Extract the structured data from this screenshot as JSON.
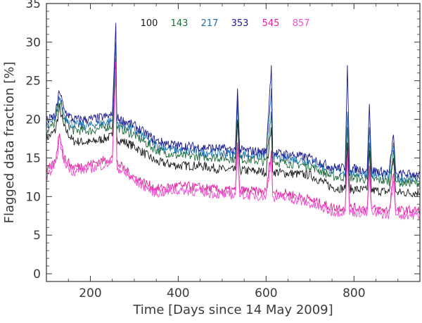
{
  "chart_data": {
    "type": "line",
    "title": "",
    "xlabel": "Time [Days since 14 May 2009]",
    "ylabel": "Flagged data fraction [%]",
    "xlim": [
      100,
      950
    ],
    "ylim": [
      -1,
      35
    ],
    "xticks": [
      200,
      400,
      600,
      800
    ],
    "yticks": [
      0,
      5,
      10,
      15,
      20,
      25,
      30,
      35
    ],
    "grid": false,
    "legend_placement": "top-center",
    "series": [
      {
        "name": "100",
        "color": "#1a1a1a",
        "x": [
          100,
          120,
          130,
          140,
          160,
          200,
          250,
          258,
          260,
          300,
          350,
          400,
          450,
          500,
          530,
          535,
          540,
          600,
          612,
          615,
          618,
          650,
          700,
          750,
          780,
          785,
          790,
          830,
          835,
          840,
          880,
          890,
          895,
          900,
          950
        ],
        "y": [
          17.5,
          18.5,
          21.5,
          19,
          17.2,
          17,
          17.8,
          26,
          17.5,
          16.5,
          14.5,
          14,
          14,
          13.5,
          13.4,
          20,
          13.4,
          13.2,
          19,
          13.2,
          13.2,
          13,
          12.8,
          11.2,
          11,
          17,
          11,
          10.8,
          16,
          10.8,
          10.6,
          15,
          10.6,
          10.5,
          10.5
        ]
      },
      {
        "name": "143",
        "color": "#1f6b3a",
        "x": [
          100,
          120,
          130,
          140,
          160,
          200,
          250,
          258,
          260,
          300,
          350,
          400,
          450,
          500,
          530,
          535,
          540,
          600,
          612,
          615,
          618,
          650,
          700,
          750,
          780,
          785,
          790,
          830,
          835,
          840,
          880,
          890,
          895,
          900,
          950
        ],
        "y": [
          18.5,
          19.5,
          22.5,
          20,
          18.6,
          18.5,
          19.2,
          28,
          19,
          18,
          16,
          15.3,
          15.2,
          15,
          14.9,
          22,
          14.9,
          14.5,
          21,
          14.5,
          14.5,
          14.3,
          14,
          12.6,
          12.5,
          19,
          12.5,
          12.2,
          17,
          12.2,
          12,
          16,
          12,
          11.8,
          11.8
        ]
      },
      {
        "name": "217",
        "color": "#1a6fb0",
        "x": [
          100,
          120,
          130,
          140,
          160,
          200,
          250,
          258,
          260,
          300,
          350,
          400,
          450,
          500,
          530,
          535,
          540,
          600,
          612,
          615,
          618,
          650,
          700,
          750,
          780,
          785,
          790,
          830,
          835,
          840,
          880,
          890,
          895,
          900,
          950
        ],
        "y": [
          19.2,
          20,
          23,
          20.6,
          19.3,
          19.2,
          19.8,
          30,
          19.6,
          18.6,
          16.6,
          16,
          15.8,
          15.6,
          15.5,
          23,
          15.5,
          15.2,
          24,
          15.2,
          15.1,
          14.9,
          14.6,
          13.4,
          13.2,
          21,
          13.2,
          12.9,
          19,
          12.9,
          12.6,
          17,
          12.6,
          12.4,
          12.4
        ]
      },
      {
        "name": "353",
        "color": "#1c1a8c",
        "x": [
          100,
          120,
          130,
          140,
          160,
          200,
          250,
          258,
          260,
          300,
          350,
          400,
          450,
          500,
          530,
          535,
          540,
          600,
          612,
          615,
          618,
          650,
          700,
          750,
          780,
          785,
          790,
          830,
          835,
          840,
          880,
          890,
          895,
          900,
          950
        ],
        "y": [
          19.8,
          20.5,
          23.8,
          21.2,
          20,
          20,
          20.5,
          32.5,
          20.2,
          19.2,
          17.2,
          16.6,
          16.4,
          16.2,
          16,
          24,
          16,
          15.8,
          27,
          15.8,
          15.6,
          15.5,
          15,
          13.8,
          13.7,
          27,
          13.7,
          13.4,
          22,
          13.4,
          13.1,
          18,
          13.1,
          12.9,
          12.9
        ]
      },
      {
        "name": "545",
        "color": "#e0209c",
        "x": [
          100,
          120,
          130,
          140,
          160,
          200,
          250,
          258,
          260,
          300,
          350,
          400,
          450,
          500,
          530,
          535,
          540,
          600,
          612,
          615,
          618,
          650,
          700,
          750,
          780,
          785,
          790,
          830,
          835,
          840,
          880,
          890,
          895,
          900,
          950
        ],
        "y": [
          13.2,
          14.5,
          18.5,
          15,
          13.8,
          14.2,
          15,
          27.5,
          14.4,
          12.5,
          11,
          11.4,
          11.2,
          10.8,
          10.8,
          17,
          10.8,
          10.6,
          16,
          10.6,
          10.5,
          10.4,
          9.6,
          8.6,
          8.6,
          16,
          8.6,
          8.4,
          14,
          8.4,
          8.2,
          13,
          8.2,
          8.2,
          8.2
        ]
      },
      {
        "name": "857",
        "color": "#f04fd0",
        "x": [
          100,
          120,
          130,
          140,
          160,
          200,
          250,
          258,
          260,
          300,
          350,
          400,
          450,
          500,
          530,
          535,
          540,
          600,
          612,
          615,
          618,
          650,
          700,
          750,
          780,
          785,
          790,
          830,
          835,
          840,
          880,
          890,
          895,
          900,
          950
        ],
        "y": [
          12.6,
          13.8,
          17.5,
          14.4,
          13.2,
          13.6,
          14.4,
          26.5,
          13.8,
          12,
          10.4,
          10.8,
          10.6,
          10.2,
          10.2,
          16,
          10.2,
          10,
          15,
          10,
          9.9,
          9.8,
          9,
          8,
          8,
          15,
          8,
          7.8,
          13,
          7.8,
          7.6,
          12,
          7.6,
          7.6,
          7.6
        ]
      }
    ]
  }
}
